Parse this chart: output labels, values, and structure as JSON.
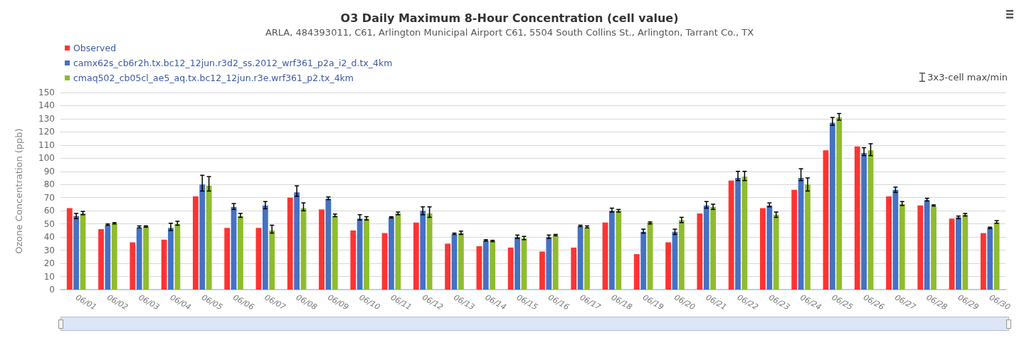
{
  "chart_data": {
    "type": "bar",
    "title": "O3 Daily Maximum 8-Hour Concentration (cell value)",
    "subtitle": "ARLA, 484393011, C61, Arlington Municipal Airport C61, 5504 South Collins St., Arlington, Tarrant Co., TX",
    "ylabel": "Ozone Concentration (ppb)",
    "annotations": [
      "3x3-cell max/min"
    ],
    "categories": [
      "06/01",
      "06/02",
      "06/03",
      "06/04",
      "06/05",
      "06/06",
      "06/07",
      "06/08",
      "06/09",
      "06/10",
      "06/11",
      "06/12",
      "06/13",
      "06/14",
      "06/15",
      "06/16",
      "06/17",
      "06/18",
      "06/19",
      "06/20",
      "06/21",
      "06/22",
      "06/23",
      "06/24",
      "06/25",
      "06/26",
      "06/27",
      "06/28",
      "06/29",
      "06/30"
    ],
    "series": [
      {
        "name": "Observed",
        "color": "#ff3333",
        "values": [
          62,
          46,
          36,
          38,
          71,
          47,
          47,
          70,
          61,
          45,
          43,
          51,
          35,
          33,
          32,
          29,
          32,
          51,
          27,
          36,
          58,
          83,
          62,
          76,
          106,
          109,
          71,
          64,
          54,
          43
        ]
      },
      {
        "name": "camx62s_cb6r2h.tx.bc12_12jun.r3d2_ss.2012_wrf361_p2a_i2_d.tx_4km",
        "color": "#4472c4",
        "values": [
          56,
          49,
          47,
          47,
          80,
          63,
          64,
          74,
          69,
          54,
          55,
          60,
          42,
          37,
          40,
          40,
          48,
          60,
          44,
          44,
          64,
          85,
          64,
          85,
          127,
          104,
          76,
          68,
          55,
          47
        ],
        "errors": [
          [
            54,
            58
          ],
          [
            49,
            50
          ],
          [
            47,
            48.5
          ],
          [
            45,
            50.5
          ],
          [
            75,
            87
          ],
          [
            61,
            65.5
          ],
          [
            61.5,
            67
          ],
          [
            71,
            79
          ],
          [
            68.5,
            70.5
          ],
          [
            53,
            57
          ],
          [
            54.5,
            55.5
          ],
          [
            57,
            63
          ],
          [
            42,
            43
          ],
          [
            37,
            38
          ],
          [
            39,
            41.5
          ],
          [
            39,
            41.5
          ],
          [
            48,
            49
          ],
          [
            59,
            62
          ],
          [
            43,
            46
          ],
          [
            42,
            46
          ],
          [
            62,
            67
          ],
          [
            83,
            90
          ],
          [
            63,
            66
          ],
          [
            83,
            92
          ],
          [
            125,
            131
          ],
          [
            102,
            108
          ],
          [
            74,
            78
          ],
          [
            67.5,
            69.5
          ],
          [
            54,
            56
          ],
          [
            46.5,
            47.5
          ]
        ]
      },
      {
        "name": "cmaq502_cb05cl_ae5_aq.tx.bc12_12jun.r3e.wrf361_p2.tx_4km",
        "color": "#8fbc2f",
        "values": [
          58,
          50,
          48,
          50,
          79,
          56,
          45,
          62,
          56,
          54,
          58,
          58,
          43,
          37,
          39,
          41,
          47,
          60,
          51,
          53,
          63,
          86,
          57,
          80,
          131,
          106,
          65,
          63,
          57,
          51
        ],
        "errors": [
          [
            57,
            59.5
          ],
          [
            50,
            51
          ],
          [
            47.5,
            48.5
          ],
          [
            49,
            52
          ],
          [
            75,
            86
          ],
          [
            55,
            58
          ],
          [
            43,
            49
          ],
          [
            60,
            66
          ],
          [
            55.5,
            57.5
          ],
          [
            53,
            55.5
          ],
          [
            57,
            59
          ],
          [
            55,
            63
          ],
          [
            42,
            44.5
          ],
          [
            36.5,
            37.5
          ],
          [
            38,
            40.5
          ],
          [
            41,
            42
          ],
          [
            47,
            48.5
          ],
          [
            59,
            61
          ],
          [
            50,
            51.5
          ],
          [
            51,
            55
          ],
          [
            61,
            65
          ],
          [
            83,
            90
          ],
          [
            55,
            59
          ],
          [
            75,
            85
          ],
          [
            129,
            134
          ],
          [
            102,
            111
          ],
          [
            64,
            67
          ],
          [
            63.5,
            64.5
          ],
          [
            56,
            58
          ],
          [
            50.5,
            52.5
          ]
        ]
      }
    ],
    "ylim": [
      0,
      150
    ],
    "yticks": [
      0,
      10,
      20,
      30,
      40,
      50,
      60,
      70,
      80,
      90,
      100,
      110,
      120,
      130,
      140,
      150
    ],
    "grid": "y",
    "legend": "top left"
  }
}
